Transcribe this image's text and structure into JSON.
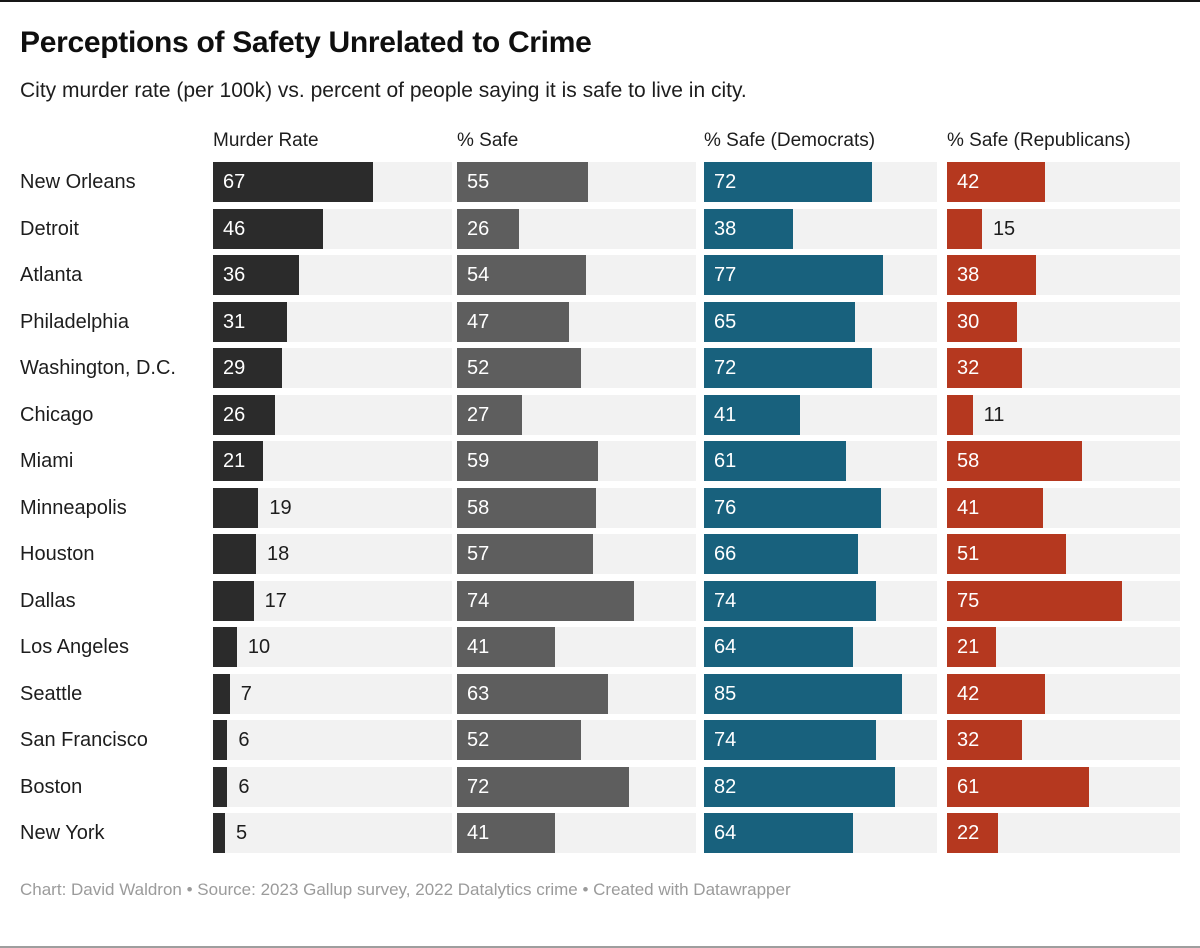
{
  "title": "Perceptions of Safety Unrelated to Crime",
  "subtitle": "City murder rate (per 100k) vs. percent of people saying it is safe to live in city.",
  "footer": "Chart: David Waldron • Source: 2023 Gallup survey, 2022 Datalytics crime • Created with Datawrapper",
  "chart_data": {
    "type": "bar",
    "orientation": "horizontal",
    "value_range": [
      0,
      100
    ],
    "track_color": "#f2f2f2",
    "series": [
      {
        "key": "murder_rate",
        "label": "Murder Rate",
        "color": "#2b2b2b"
      },
      {
        "key": "safe",
        "label": "% Safe",
        "color": "#5e5e5e"
      },
      {
        "key": "safe_democrats",
        "label": "% Safe (Democrats)",
        "color": "#18617d"
      },
      {
        "key": "safe_republicans",
        "label": "% Safe (Republicans)",
        "color": "#b5381f"
      }
    ],
    "rows": [
      {
        "city": "New Orleans",
        "murder_rate": 67,
        "safe": 55,
        "safe_democrats": 72,
        "safe_republicans": 42
      },
      {
        "city": "Detroit",
        "murder_rate": 46,
        "safe": 26,
        "safe_democrats": 38,
        "safe_republicans": 15
      },
      {
        "city": "Atlanta",
        "murder_rate": 36,
        "safe": 54,
        "safe_democrats": 77,
        "safe_republicans": 38
      },
      {
        "city": "Philadelphia",
        "murder_rate": 31,
        "safe": 47,
        "safe_democrats": 65,
        "safe_republicans": 30
      },
      {
        "city": "Washington, D.C.",
        "murder_rate": 29,
        "safe": 52,
        "safe_democrats": 72,
        "safe_republicans": 32
      },
      {
        "city": "Chicago",
        "murder_rate": 26,
        "safe": 27,
        "safe_democrats": 41,
        "safe_republicans": 11
      },
      {
        "city": "Miami",
        "murder_rate": 21,
        "safe": 59,
        "safe_democrats": 61,
        "safe_republicans": 58
      },
      {
        "city": "Minneapolis",
        "murder_rate": 19,
        "safe": 58,
        "safe_democrats": 76,
        "safe_republicans": 41
      },
      {
        "city": "Houston",
        "murder_rate": 18,
        "safe": 57,
        "safe_democrats": 66,
        "safe_republicans": 51
      },
      {
        "city": "Dallas",
        "murder_rate": 17,
        "safe": 74,
        "safe_democrats": 74,
        "safe_republicans": 75
      },
      {
        "city": "Los Angeles",
        "murder_rate": 10,
        "safe": 41,
        "safe_democrats": 64,
        "safe_republicans": 21
      },
      {
        "city": "Seattle",
        "murder_rate": 7,
        "safe": 63,
        "safe_democrats": 85,
        "safe_republicans": 42
      },
      {
        "city": "San Francisco",
        "murder_rate": 6,
        "safe": 52,
        "safe_democrats": 74,
        "safe_republicans": 32
      },
      {
        "city": "Boston",
        "murder_rate": 6,
        "safe": 72,
        "safe_democrats": 82,
        "safe_republicans": 61
      },
      {
        "city": "New York",
        "murder_rate": 5,
        "safe": 41,
        "safe_democrats": 64,
        "safe_republicans": 22
      }
    ]
  }
}
